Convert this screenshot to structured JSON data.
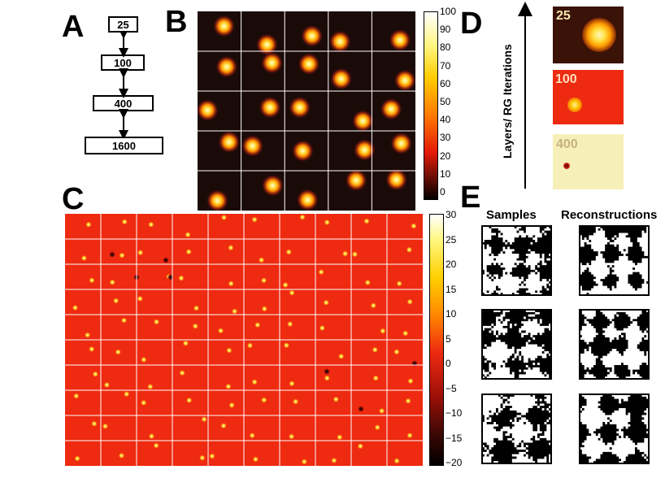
{
  "panels": {
    "A": {
      "label": "A",
      "boxes": [
        {
          "text": "25"
        },
        {
          "text": "100"
        },
        {
          "text": "400"
        },
        {
          "text": "1600"
        }
      ]
    },
    "B": {
      "label": "B",
      "grid": [
        5,
        5
      ],
      "colorbar_ticks": [
        "100",
        "90",
        "80",
        "70",
        "60",
        "50",
        "40",
        "30",
        "20",
        "10",
        "0"
      ]
    },
    "C": {
      "label": "C",
      "grid": [
        10,
        10
      ],
      "colorbar_ticks": [
        "30",
        "25",
        "20",
        "15",
        "10",
        "5",
        "0",
        "−5",
        "−10",
        "−15",
        "−20"
      ]
    },
    "D": {
      "label": "D",
      "axis_label": "Layers/ RG Iterations",
      "maps": [
        {
          "text": "25",
          "bg": "#3a1208"
        },
        {
          "text": "100",
          "bg": "#ee2a10"
        },
        {
          "text": "400",
          "bg": "#f6f0b8"
        }
      ]
    },
    "E": {
      "label": "E",
      "headers": {
        "samples": "Samples",
        "reconstructions": "Reconstructions"
      }
    }
  },
  "colors": {
    "dark": "#1a0a08",
    "red": "#ee2a10",
    "orange": "#ff8c00",
    "yellow": "#fff060",
    "pale": "#f6f0b8"
  }
}
